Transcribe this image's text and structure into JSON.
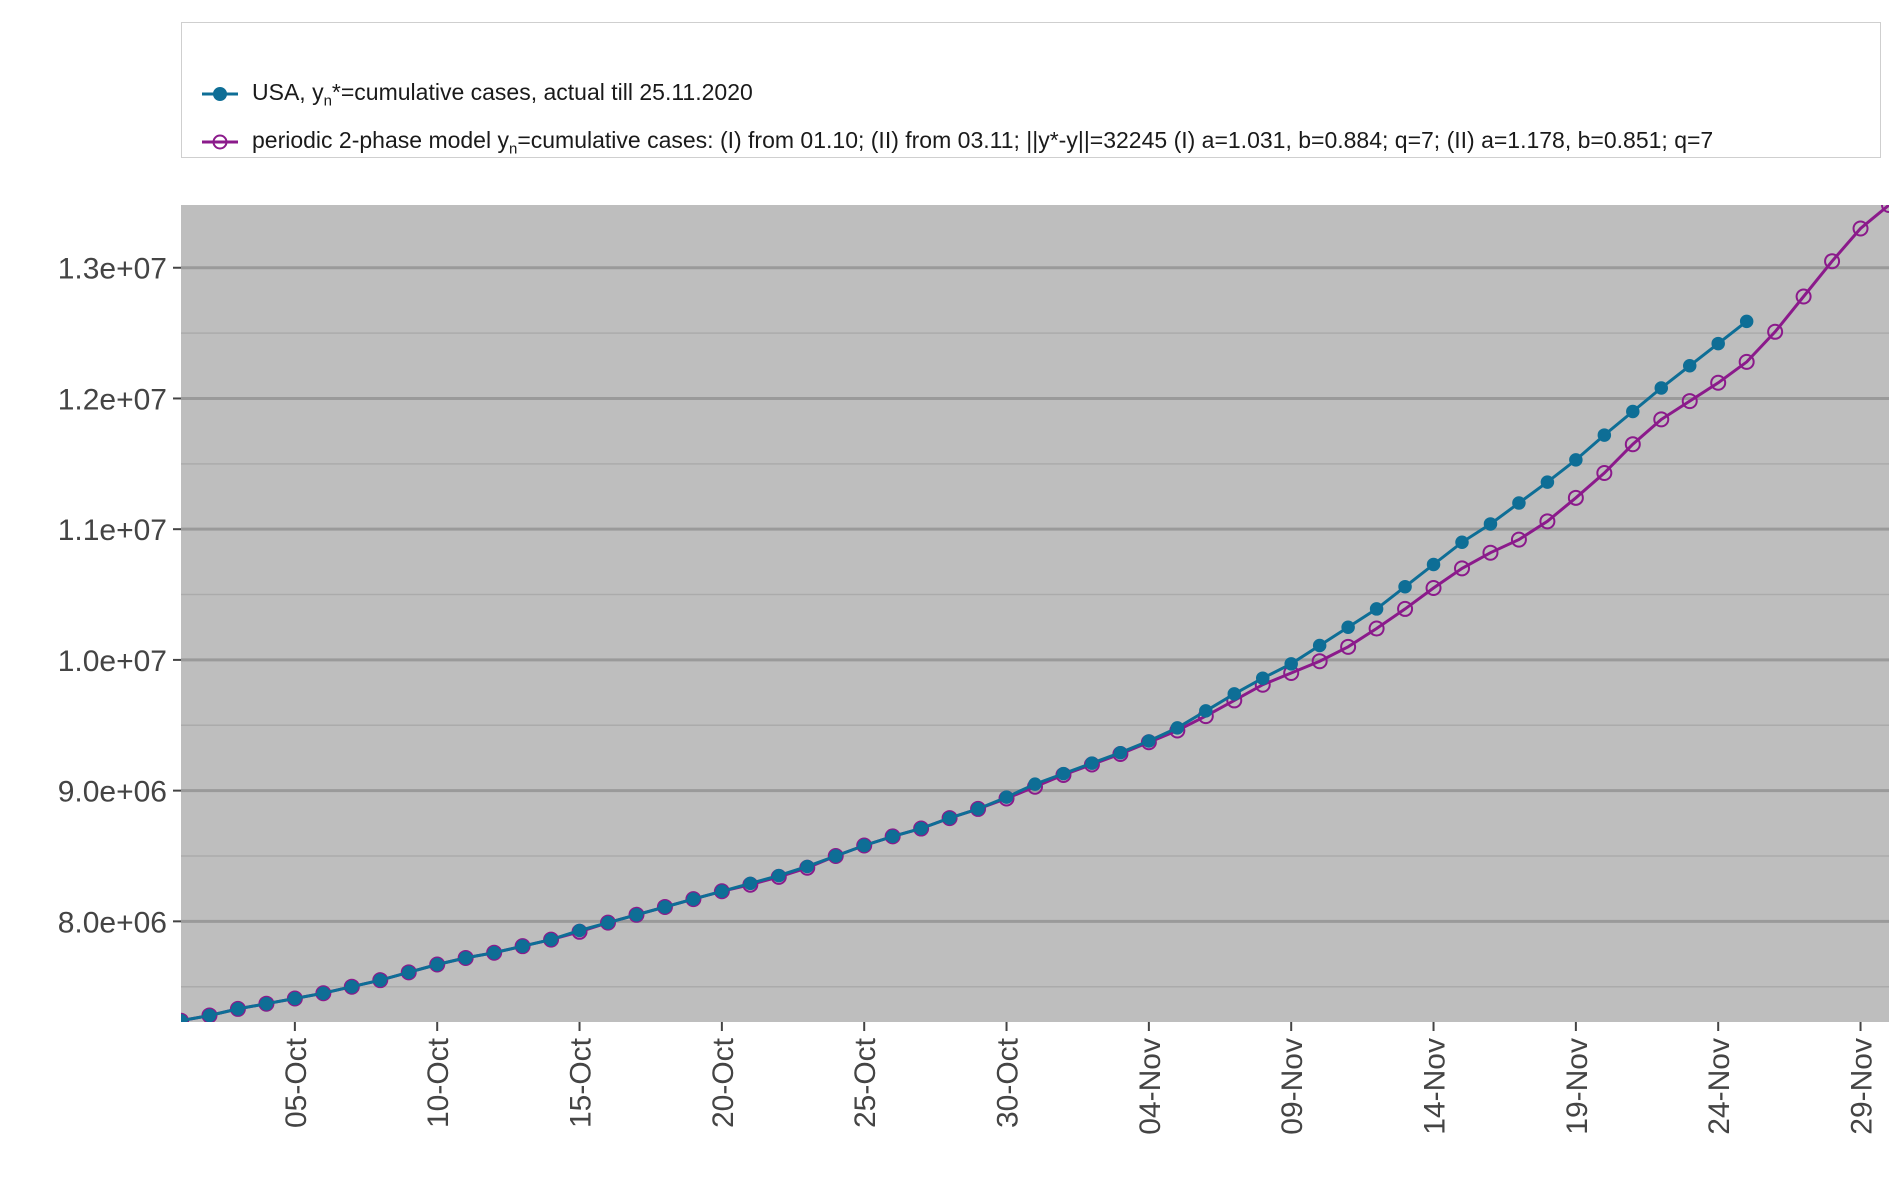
{
  "chart_data": {
    "type": "line",
    "title": "",
    "xlabel": "",
    "ylabel": "",
    "x_start": "2020-10-01",
    "xlim": [
      "2020-10-01",
      "2020-11-30"
    ],
    "ylim": [
      7230000,
      13480000
    ],
    "grid": true,
    "legend_position": "top",
    "background_color": "#bebebe",
    "x_ticks": [
      "05-Oct",
      "10-Oct",
      "15-Oct",
      "20-Oct",
      "25-Oct",
      "30-Oct",
      "04-Nov",
      "09-Nov",
      "14-Nov",
      "19-Nov",
      "24-Nov",
      "29-Nov"
    ],
    "y_ticks": [
      "8.0e+06",
      "9.0e+06",
      "1.0e+07",
      "1.1e+07",
      "1.2e+07",
      "1.3e+07"
    ],
    "series": [
      {
        "name_prefix": "USA, y",
        "name_sub": "n",
        "name_suffix": "*=cumulative cases, actual till 25.11.2020",
        "color": "#0e6e96",
        "marker": "filled-circle",
        "values": [
          7240000,
          7280000,
          7330000,
          7370000,
          7410000,
          7450000,
          7500000,
          7550000,
          7610000,
          7670000,
          7720000,
          7760000,
          7810000,
          7860000,
          7930000,
          7990000,
          8050000,
          8110000,
          8170000,
          8230000,
          8290000,
          8350000,
          8420000,
          8500000,
          8580000,
          8650000,
          8710000,
          8790000,
          8860000,
          8950000,
          9050000,
          9130000,
          9210000,
          9290000,
          9380000,
          9480000,
          9610000,
          9740000,
          9860000,
          9970000,
          10110000,
          10250000,
          10390000,
          10560000,
          10730000,
          10900000,
          11040000,
          11200000,
          11360000,
          11530000,
          11720000,
          11900000,
          12080000,
          12250000,
          12420000,
          12590000
        ]
      },
      {
        "name_prefix": "periodic 2-phase model y",
        "name_sub": "n",
        "name_suffix": "=cumulative cases: (I) from 01.10; (II) from 03.11; ||y*-y||=32245  (I) a=1.031, b=0.884; q=7; (II) a=1.178, b=0.851; q=7",
        "color": "#8b1a8b",
        "marker": "open-circle",
        "values": [
          7240000,
          7280000,
          7330000,
          7370000,
          7410000,
          7450000,
          7500000,
          7550000,
          7610000,
          7670000,
          7720000,
          7760000,
          7810000,
          7860000,
          7920000,
          7990000,
          8050000,
          8110000,
          8170000,
          8230000,
          8280000,
          8340000,
          8410000,
          8500000,
          8580000,
          8650000,
          8710000,
          8790000,
          8860000,
          8940000,
          9030000,
          9120000,
          9200000,
          9280000,
          9370000,
          9460000,
          9570000,
          9690000,
          9810000,
          9900000,
          9990000,
          10100000,
          10240000,
          10390000,
          10550000,
          10700000,
          10820000,
          10920000,
          11060000,
          11240000,
          11430000,
          11650000,
          11840000,
          11980000,
          12120000,
          12280000,
          12510000,
          12780000,
          13050000,
          13300000,
          13480000
        ]
      }
    ]
  }
}
